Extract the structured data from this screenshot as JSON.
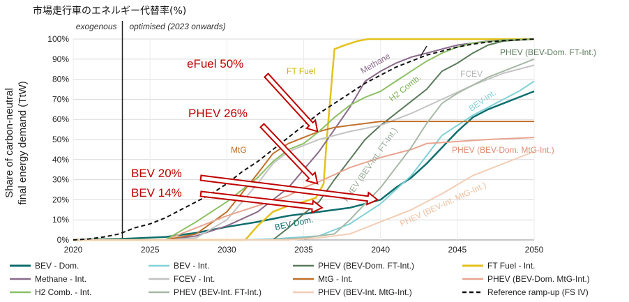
{
  "chart_data": {
    "type": "line",
    "title": "市場走行車のエネルギー代替率(%)",
    "ylabel_lines": [
      "Share of carbon-neutral",
      "final energy demand (TtW)"
    ],
    "xlim": [
      2020,
      2050
    ],
    "ylim": [
      0,
      100
    ],
    "x_ticks": [
      "2020",
      "2025",
      "2030",
      "2035",
      "2040",
      "2045",
      "2050"
    ],
    "y_ticks": [
      "0%",
      "10%",
      "20%",
      "30%",
      "40%",
      "50%",
      "60%",
      "70%",
      "80%",
      "90%",
      "100%"
    ],
    "grid": true,
    "legend_position": "bottom",
    "regions": {
      "exogenous": "exogenous",
      "optimised": "optimised (2023 onwards)",
      "divider_year": 2023.2
    },
    "series": [
      {
        "name": "BEV - Dom.",
        "color": "#0e6e6e",
        "width": 2.5,
        "dash": "",
        "label": "BEV-Dom.",
        "label_color": "#0e6e6e",
        "points": [
          [
            2020,
            0
          ],
          [
            2023,
            0.5
          ],
          [
            2026,
            1.5
          ],
          [
            2028,
            3.5
          ],
          [
            2030,
            6.5
          ],
          [
            2032,
            9
          ],
          [
            2034,
            12
          ],
          [
            2036,
            14
          ],
          [
            2038,
            16
          ],
          [
            2040,
            20
          ],
          [
            2041,
            26
          ],
          [
            2042,
            31
          ],
          [
            2043,
            38
          ],
          [
            2044,
            46
          ],
          [
            2045,
            54
          ],
          [
            2046,
            61
          ],
          [
            2047,
            65
          ],
          [
            2048,
            68
          ],
          [
            2049,
            71
          ],
          [
            2050,
            74
          ]
        ]
      },
      {
        "name": "BEV - Int.",
        "color": "#7fd1d6",
        "width": 2,
        "dash": "",
        "label": "BEV-Int.",
        "label_color": "#7fd1d6",
        "points": [
          [
            2020,
            0
          ],
          [
            2031,
            0
          ],
          [
            2033,
            0.5
          ],
          [
            2036,
            2
          ],
          [
            2038,
            8
          ],
          [
            2040,
            18
          ],
          [
            2042,
            32
          ],
          [
            2043,
            42
          ],
          [
            2044,
            52
          ],
          [
            2045,
            57
          ],
          [
            2046,
            62
          ],
          [
            2047,
            66
          ],
          [
            2048,
            70
          ],
          [
            2049,
            74
          ],
          [
            2050,
            79
          ]
        ]
      },
      {
        "name": "PHEV (BEV-Dom. FT-Int.)",
        "color": "#5a7a5a",
        "width": 2,
        "dash": "",
        "label": "PHEV (BEV-Dom.  FT-Int.)",
        "label_color": "#5a7a5a",
        "points": [
          [
            2020,
            0
          ],
          [
            2033,
            0
          ],
          [
            2034,
            6
          ],
          [
            2035,
            13
          ],
          [
            2036,
            19
          ],
          [
            2037,
            30
          ],
          [
            2038,
            40
          ],
          [
            2039,
            50
          ],
          [
            2040,
            57
          ],
          [
            2041,
            63
          ],
          [
            2042,
            69
          ],
          [
            2043,
            75
          ],
          [
            2044,
            84
          ],
          [
            2045,
            88
          ],
          [
            2046,
            93
          ],
          [
            2047,
            97
          ],
          [
            2048,
            99
          ],
          [
            2049,
            99.5
          ],
          [
            2050,
            100
          ]
        ]
      },
      {
        "name": "FT Fuel - Int.",
        "color": "#e3c21b",
        "width": 2.5,
        "dash": "",
        "label": "FT Fuel",
        "label_color": "#d4b000",
        "points": [
          [
            2020,
            0
          ],
          [
            2031.2,
            0
          ],
          [
            2032,
            7
          ],
          [
            2033,
            14
          ],
          [
            2034,
            17
          ],
          [
            2035,
            19
          ],
          [
            2035.8,
            21
          ],
          [
            2036.3,
            28
          ],
          [
            2036.5,
            50
          ],
          [
            2037,
            95
          ],
          [
            2037.7,
            97
          ],
          [
            2038.5,
            99
          ],
          [
            2039.2,
            100
          ],
          [
            2050,
            100
          ]
        ]
      },
      {
        "name": "Methane - Int.",
        "color": "#8a6a8a",
        "width": 2,
        "dash": "",
        "label": "Methane",
        "label_color": "#8a6a8a",
        "points": [
          [
            2020,
            0
          ],
          [
            2026,
            0
          ],
          [
            2028,
            2
          ],
          [
            2030,
            7
          ],
          [
            2032,
            14
          ],
          [
            2034,
            26
          ],
          [
            2036,
            44
          ],
          [
            2038,
            66
          ],
          [
            2039,
            79
          ],
          [
            2040,
            84
          ],
          [
            2041,
            88
          ],
          [
            2042,
            91
          ],
          [
            2043,
            93
          ],
          [
            2044,
            95
          ],
          [
            2045,
            97
          ],
          [
            2046,
            98
          ],
          [
            2047,
            99
          ],
          [
            2048,
            99.5
          ],
          [
            2050,
            100
          ]
        ]
      },
      {
        "name": "FCEV - Int.",
        "color": "#c3c3c3",
        "width": 2,
        "dash": "",
        "label": "FCEV",
        "label_color": "#b5b5b5",
        "points": [
          [
            2020,
            0
          ],
          [
            2026,
            0
          ],
          [
            2028,
            1
          ],
          [
            2030,
            10
          ],
          [
            2032,
            28
          ],
          [
            2033,
            38
          ],
          [
            2034,
            44
          ],
          [
            2035,
            47
          ],
          [
            2036,
            50
          ],
          [
            2038,
            54
          ],
          [
            2040,
            57
          ],
          [
            2042,
            63
          ],
          [
            2044,
            70
          ],
          [
            2046,
            77
          ],
          [
            2048,
            83
          ],
          [
            2050,
            87
          ]
        ]
      },
      {
        "name": "MtG - Int.",
        "color": "#c0702a",
        "width": 2,
        "dash": "",
        "label": "MtG",
        "label_color": "#c0702a",
        "points": [
          [
            2020,
            0
          ],
          [
            2026,
            0
          ],
          [
            2028,
            3
          ],
          [
            2030,
            14
          ],
          [
            2032,
            33
          ],
          [
            2033,
            43
          ],
          [
            2034,
            48
          ],
          [
            2035,
            51
          ],
          [
            2036,
            54
          ],
          [
            2037,
            56
          ],
          [
            2038,
            57
          ],
          [
            2039,
            58
          ],
          [
            2040,
            59
          ],
          [
            2042,
            59
          ],
          [
            2045,
            59
          ],
          [
            2050,
            59
          ]
        ]
      },
      {
        "name": "PHEV (BEV-Dom. MtG-Int.)",
        "color": "#e8a590",
        "width": 2,
        "dash": "",
        "label": "PHEV (BEV-Dom. MtG-Int.)",
        "label_color": "#e08a70",
        "points": [
          [
            2020,
            0
          ],
          [
            2026,
            0
          ],
          [
            2028,
            6
          ],
          [
            2030,
            12
          ],
          [
            2032,
            17
          ],
          [
            2034,
            22
          ],
          [
            2035,
            26
          ],
          [
            2036,
            29
          ],
          [
            2038,
            36
          ],
          [
            2040,
            41
          ],
          [
            2042,
            45
          ],
          [
            2043,
            48
          ],
          [
            2045,
            49
          ],
          [
            2047,
            50
          ],
          [
            2050,
            51
          ]
        ]
      },
      {
        "name": "H2 Comb. - Int.",
        "color": "#8cc063",
        "width": 2,
        "dash": "",
        "label": "H2 Comb.",
        "label_color": "#7ab050",
        "points": [
          [
            2020,
            0
          ],
          [
            2026,
            0
          ],
          [
            2028,
            9
          ],
          [
            2030,
            19
          ],
          [
            2032,
            31
          ],
          [
            2033,
            39
          ],
          [
            2034,
            45
          ],
          [
            2035,
            48
          ],
          [
            2036,
            54
          ],
          [
            2037,
            61
          ],
          [
            2038,
            67
          ],
          [
            2039,
            71
          ],
          [
            2040,
            74
          ],
          [
            2041,
            79
          ],
          [
            2042,
            84
          ],
          [
            2043,
            89
          ],
          [
            2044,
            93
          ],
          [
            2045,
            96
          ],
          [
            2046,
            98
          ],
          [
            2048,
            99.5
          ],
          [
            2050,
            100
          ]
        ]
      },
      {
        "name": "PHEV (BEV-Int. FT-Int.)",
        "color": "#a6b8a6",
        "width": 2,
        "dash": "",
        "label": "PHEV (BEV-Int. FT-Int.)",
        "label_color": "#98aa98",
        "points": [
          [
            2020,
            0
          ],
          [
            2033,
            0
          ],
          [
            2035,
            1
          ],
          [
            2037,
            3
          ],
          [
            2038,
            10
          ],
          [
            2039,
            18
          ],
          [
            2040,
            26
          ],
          [
            2041,
            36
          ],
          [
            2042,
            46
          ],
          [
            2043,
            58
          ],
          [
            2044,
            68
          ],
          [
            2045,
            73
          ],
          [
            2046,
            77
          ],
          [
            2047,
            81
          ],
          [
            2048,
            84
          ],
          [
            2049,
            87
          ],
          [
            2050,
            90
          ]
        ]
      },
      {
        "name": "PHEV (BEV-Int. MtG-Int.)",
        "color": "#f3cdb5",
        "width": 2,
        "dash": "",
        "label": "PHEV (BEV-Int. MtG-Int.)",
        "label_color": "#efbf9f",
        "points": [
          [
            2020,
            0
          ],
          [
            2034,
            0
          ],
          [
            2036,
            1
          ],
          [
            2038,
            3
          ],
          [
            2040,
            9
          ],
          [
            2042,
            15
          ],
          [
            2044,
            23
          ],
          [
            2046,
            32
          ],
          [
            2048,
            38
          ],
          [
            2050,
            44
          ]
        ]
      },
      {
        "name": "Reference ramp-up (FS IV)",
        "color": "#111111",
        "width": 2,
        "dash": "6,4",
        "label": "",
        "label_color": "#111111",
        "points": [
          [
            2020,
            0
          ],
          [
            2021,
            0.5
          ],
          [
            2022,
            1.5
          ],
          [
            2023,
            3
          ],
          [
            2024,
            6
          ],
          [
            2025,
            8
          ],
          [
            2026,
            11
          ],
          [
            2027,
            15
          ],
          [
            2028,
            19
          ],
          [
            2029,
            23
          ],
          [
            2030,
            28
          ],
          [
            2031,
            34
          ],
          [
            2032,
            39
          ],
          [
            2033,
            45
          ],
          [
            2034,
            51
          ],
          [
            2035,
            57
          ],
          [
            2036,
            63
          ],
          [
            2037,
            68
          ],
          [
            2038,
            73
          ],
          [
            2039,
            78
          ],
          [
            2040,
            82
          ],
          [
            2041,
            86
          ],
          [
            2042,
            89
          ],
          [
            2043,
            92
          ],
          [
            2044,
            94
          ],
          [
            2045,
            96
          ],
          [
            2046,
            97.5
          ],
          [
            2047,
            98.5
          ],
          [
            2048,
            99.2
          ],
          [
            2050,
            100
          ]
        ]
      }
    ],
    "annotations": [
      {
        "text": "eFuel 50%",
        "target_year": 2035.9,
        "target_value": 54
      },
      {
        "text": "PHEV 26%",
        "target_year": 2035.9,
        "target_value": 28
      },
      {
        "text": "BEV 20%",
        "target_year": 2039.8,
        "target_value": 20
      },
      {
        "text": "BEV 14%",
        "target_year": 2036.2,
        "target_value": 16
      }
    ]
  }
}
